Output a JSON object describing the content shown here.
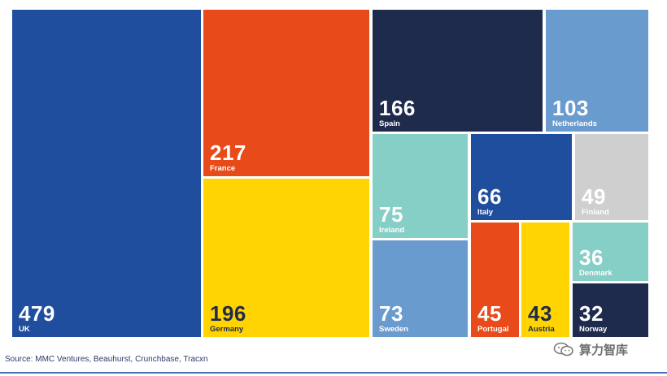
{
  "chart_data": {
    "type": "treemap",
    "title": "",
    "items": [
      {
        "label": "UK",
        "value": 479,
        "color": "#1f4e9e"
      },
      {
        "label": "France",
        "value": 217,
        "color": "#e84a1a"
      },
      {
        "label": "Germany",
        "value": 196,
        "color": "#ffd400"
      },
      {
        "label": "Spain",
        "value": 166,
        "color": "#1f2b4d"
      },
      {
        "label": "Netherlands",
        "value": 103,
        "color": "#6a9bcf"
      },
      {
        "label": "Ireland",
        "value": 75,
        "color": "#86cfc6"
      },
      {
        "label": "Sweden",
        "value": 73,
        "color": "#6a9bcf"
      },
      {
        "label": "Italy",
        "value": 66,
        "color": "#1f4e9e"
      },
      {
        "label": "Finland",
        "value": 49,
        "color": "#cfcfcf"
      },
      {
        "label": "Portugal",
        "value": 45,
        "color": "#e84a1a"
      },
      {
        "label": "Austria",
        "value": 43,
        "color": "#ffd400"
      },
      {
        "label": "Denmark",
        "value": 36,
        "color": "#86cfc6"
      },
      {
        "label": "Norway",
        "value": 32,
        "color": "#1f2b4d"
      }
    ]
  },
  "source": "Source: MMC Ventures, Beauhurst, Crunchbase, Tracxn",
  "watermark": "算力智库",
  "colors": {
    "dark_text": "#1f2b4d",
    "light_text": "#ffffff",
    "rule": "#4a73b5"
  }
}
